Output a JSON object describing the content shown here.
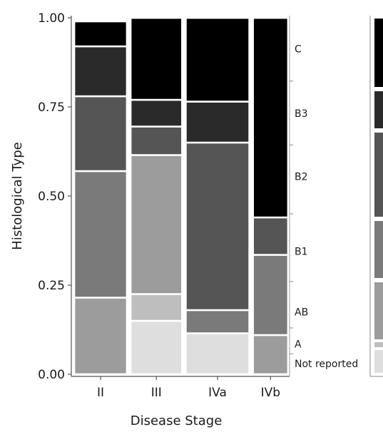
{
  "chart_data": {
    "type": "mosaic",
    "xlabel": "Disease Stage",
    "ylabel": "Histological Type",
    "ylim": [
      0,
      1
    ],
    "yticks": [
      "0.00",
      "0.25",
      "0.50",
      "0.75",
      "1.00"
    ],
    "categories": [
      "II",
      "III",
      "IVa",
      "IVb"
    ],
    "column_widths": [
      0.219,
      0.214,
      0.264,
      0.146
    ],
    "stack_order": [
      "Not reported",
      "A",
      "AB",
      "B1",
      "B2",
      "B3",
      "C"
    ],
    "fills": {
      "Not reported": "#dedede",
      "A": "#bebebe",
      "AB": "#9c9c9c",
      "B1": "#7a7a7a",
      "B2": "#555555",
      "B3": "#2a2a2a",
      "C": "#000000"
    },
    "series": [
      {
        "name": "Not reported",
        "values": [
          0,
          0.15,
          0.115,
          0
        ]
      },
      {
        "name": "A",
        "values": [
          0,
          0.075,
          0,
          0
        ]
      },
      {
        "name": "AB",
        "values": [
          0.215,
          0.39,
          0,
          0.11
        ]
      },
      {
        "name": "B1",
        "values": [
          0.355,
          0,
          0.065,
          0.225
        ]
      },
      {
        "name": "B2",
        "values": [
          0.21,
          0.08,
          0.47,
          0.105
        ]
      },
      {
        "name": "B3",
        "values": [
          0.14,
          0.075,
          0.115,
          0
        ]
      },
      {
        "name": "C",
        "values": [
          0.07,
          0.23,
          0.235,
          0.56
        ]
      }
    ],
    "legend_text": [
      "C",
      "B3",
      "B2",
      "B1",
      "AB",
      "A",
      "Not reported"
    ],
    "legend_levels": [
      0.913,
      0.732,
      0.555,
      0.345,
      0.175,
      0.085,
      0.03
    ]
  }
}
